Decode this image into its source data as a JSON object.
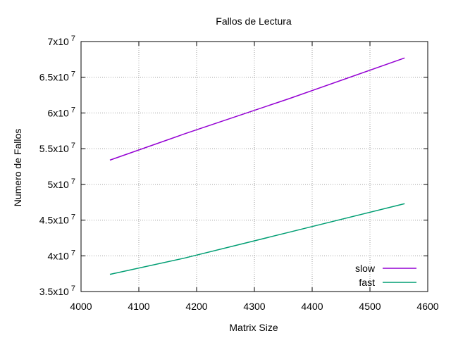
{
  "chart_data": {
    "type": "line",
    "title": "Fallos de Lectura",
    "xlabel": "Matrix Size",
    "ylabel": "Numero de Fallos",
    "xlim": [
      4000,
      4600
    ],
    "ylim": [
      35000000,
      70000000
    ],
    "x_ticks": [
      {
        "value": 4000,
        "label": "4000"
      },
      {
        "value": 4100,
        "label": "4100"
      },
      {
        "value": 4200,
        "label": "4200"
      },
      {
        "value": 4300,
        "label": "4300"
      },
      {
        "value": 4400,
        "label": "4400"
      },
      {
        "value": 4500,
        "label": "4500"
      },
      {
        "value": 4600,
        "label": "4600"
      }
    ],
    "y_ticks": [
      {
        "value": 35000000,
        "mantissa": "3.5x10",
        "exp": "7"
      },
      {
        "value": 40000000,
        "mantissa": "4x10",
        "exp": "7"
      },
      {
        "value": 45000000,
        "mantissa": "4.5x10",
        "exp": "7"
      },
      {
        "value": 50000000,
        "mantissa": "5x10",
        "exp": "7"
      },
      {
        "value": 55000000,
        "mantissa": "5.5x10",
        "exp": "7"
      },
      {
        "value": 60000000,
        "mantissa": "6x10",
        "exp": "7"
      },
      {
        "value": 65000000,
        "mantissa": "6.5x10",
        "exp": "7"
      },
      {
        "value": 70000000,
        "mantissa": "7x10",
        "exp": "7"
      }
    ],
    "grid": true,
    "legend_position": "bottom-right",
    "series": [
      {
        "name": "slow",
        "color": "#9400d3",
        "x": [
          4050,
          4180,
          4360,
          4560
        ],
        "y": [
          53400000,
          57100000,
          62000000,
          67700000
        ]
      },
      {
        "name": "fast",
        "color": "#009e73",
        "x": [
          4050,
          4180,
          4360,
          4560
        ],
        "y": [
          37400000,
          39700000,
          43300000,
          47300000
        ]
      }
    ]
  }
}
